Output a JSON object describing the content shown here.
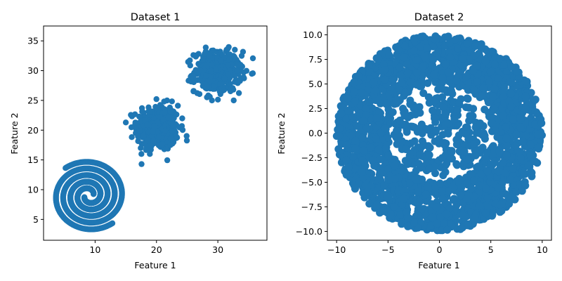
{
  "colors": {
    "marker": "#1f77b4",
    "axes": "#000000",
    "background": "#ffffff"
  },
  "chart_data": [
    {
      "type": "scatter",
      "title": "Dataset 1",
      "xlabel": "Feature 1",
      "ylabel": "Feature 2",
      "xlim": [
        1.6,
        38.0
      ],
      "ylim": [
        1.5,
        37.5
      ],
      "grid": false,
      "legend": "none",
      "xticks": [
        10,
        20,
        30
      ],
      "yticks": [
        5,
        10,
        15,
        20,
        25,
        30,
        35
      ],
      "components": [
        {
          "kind": "double-spiral",
          "center": [
            9.0,
            9.0
          ],
          "inner_radius": 0.8,
          "outer_radius": 6.2,
          "turns": 2.3,
          "extent_x": [
            2.6,
            15.6
          ],
          "extent_y": [
            3.2,
            14.8
          ]
        },
        {
          "kind": "gaussian-blob",
          "center": [
            20.2,
            20.4
          ],
          "std": [
            1.7,
            1.9
          ],
          "extent_x": [
            15.0,
            25.5
          ],
          "extent_y": [
            14.3,
            26.0
          ]
        },
        {
          "kind": "gaussian-blob",
          "center": [
            30.0,
            29.8
          ],
          "std": [
            1.9,
            1.7
          ],
          "extent_x": [
            23.8,
            37.0
          ],
          "extent_y": [
            25.0,
            35.9
          ]
        }
      ]
    },
    {
      "type": "scatter",
      "title": "Dataset 2",
      "xlabel": "Feature 1",
      "ylabel": "Feature 2",
      "xlim": [
        -10.9,
        10.9
      ],
      "ylim": [
        -10.9,
        10.9
      ],
      "grid": false,
      "legend": "none",
      "xticks": [
        -10,
        -5,
        0,
        5,
        10
      ],
      "yticks": [
        -10.0,
        -7.5,
        -5.0,
        -2.5,
        0.0,
        2.5,
        5.0,
        7.5,
        10.0
      ],
      "ytick_labels": [
        "−10.0",
        "−7.5",
        "−5.0",
        "−2.5",
        "0.0",
        "2.5",
        "5.0",
        "7.5",
        "10.0"
      ],
      "components": [
        {
          "kind": "annulus",
          "center": [
            0,
            0
          ],
          "r_inner": 5.0,
          "r_outer": 10.0
        },
        {
          "kind": "sparse-disk",
          "center": [
            0,
            0
          ],
          "r_outer": 4.5
        }
      ]
    }
  ]
}
